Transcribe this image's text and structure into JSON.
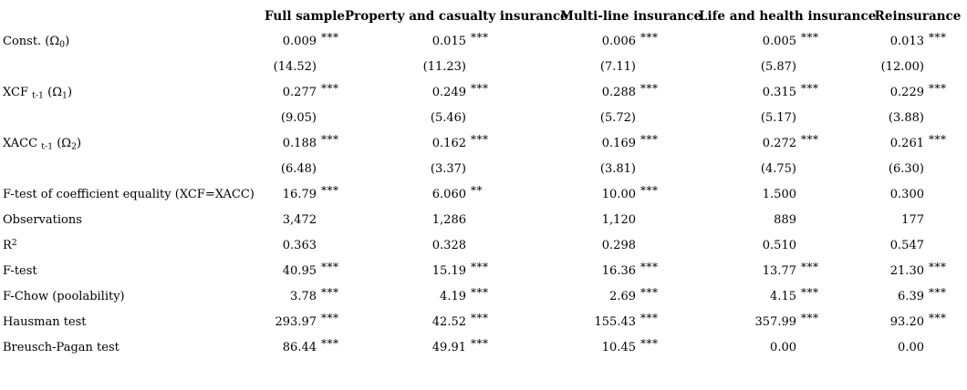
{
  "colors": {
    "text": "#000000",
    "background": "#ffffff"
  },
  "table": {
    "columns": [
      "",
      "Full sample",
      "Property and casualty insurance",
      "Multi-line insurance",
      "Life and health insurance",
      "Reinsurance"
    ],
    "rows": [
      {
        "kind": "coefficient",
        "label_parts": [
          {
            "t": "Const. (Ω"
          },
          {
            "t": "0",
            "s": "sub"
          },
          {
            "t": ")"
          }
        ],
        "cells": [
          {
            "v": "0.009",
            "stars": "***"
          },
          {
            "v": "0.015",
            "stars": "***"
          },
          {
            "v": "0.006",
            "stars": "***"
          },
          {
            "v": "0.005",
            "stars": "***"
          },
          {
            "v": "0.013",
            "stars": "***"
          }
        ]
      },
      {
        "kind": "t-statistic",
        "label_parts": [],
        "cells": [
          {
            "v": "(14.52)"
          },
          {
            "v": "(11.23)"
          },
          {
            "v": "(7.11)"
          },
          {
            "v": "(5.87)"
          },
          {
            "v": "(12.00)"
          }
        ]
      },
      {
        "kind": "coefficient",
        "label_parts": [
          {
            "t": "XCF "
          },
          {
            "t": "t-1",
            "s": "sub"
          },
          {
            "t": " (Ω"
          },
          {
            "t": "1",
            "s": "sub"
          },
          {
            "t": ")"
          }
        ],
        "cells": [
          {
            "v": "0.277",
            "stars": "***"
          },
          {
            "v": "0.249",
            "stars": "***"
          },
          {
            "v": "0.288",
            "stars": "***"
          },
          {
            "v": "0.315",
            "stars": "***"
          },
          {
            "v": "0.229",
            "stars": "***"
          }
        ]
      },
      {
        "kind": "t-statistic",
        "label_parts": [],
        "cells": [
          {
            "v": "(9.05)"
          },
          {
            "v": "(5.46)"
          },
          {
            "v": "(5.72)"
          },
          {
            "v": "(5.17)"
          },
          {
            "v": "(3.88)"
          }
        ]
      },
      {
        "kind": "coefficient",
        "label_parts": [
          {
            "t": "XACC "
          },
          {
            "t": "t-1",
            "s": "sub"
          },
          {
            "t": " (Ω"
          },
          {
            "t": "2",
            "s": "sub"
          },
          {
            "t": ")"
          }
        ],
        "cells": [
          {
            "v": "0.188",
            "stars": "***"
          },
          {
            "v": "0.162",
            "stars": "***"
          },
          {
            "v": "0.169",
            "stars": "***"
          },
          {
            "v": "0.272",
            "stars": "***"
          },
          {
            "v": "0.261",
            "stars": "***"
          }
        ]
      },
      {
        "kind": "t-statistic",
        "label_parts": [],
        "cells": [
          {
            "v": "(6.48)"
          },
          {
            "v": "(3.37)"
          },
          {
            "v": "(3.81)"
          },
          {
            "v": "(4.75)"
          },
          {
            "v": "(6.30)"
          }
        ]
      },
      {
        "kind": "statistic",
        "label_parts": [
          {
            "t": "F-test of coefficient equality (XCF=XACC)"
          }
        ],
        "cells": [
          {
            "v": "16.79",
            "stars": "***"
          },
          {
            "v": "6.060",
            "stars": "**"
          },
          {
            "v": "10.00",
            "stars": "***"
          },
          {
            "v": "1.500"
          },
          {
            "v": "0.300"
          }
        ]
      },
      {
        "kind": "statistic",
        "label_parts": [
          {
            "t": "Observations"
          }
        ],
        "cells": [
          {
            "v": "3,472"
          },
          {
            "v": "1,286"
          },
          {
            "v": "1,120"
          },
          {
            "v": "889"
          },
          {
            "v": "177"
          }
        ]
      },
      {
        "kind": "statistic",
        "label_parts": [
          {
            "t": "R"
          },
          {
            "t": "2",
            "s": "sup"
          }
        ],
        "cells": [
          {
            "v": "0.363"
          },
          {
            "v": "0.328"
          },
          {
            "v": "0.298"
          },
          {
            "v": "0.510"
          },
          {
            "v": "0.547"
          }
        ]
      },
      {
        "kind": "statistic",
        "label_parts": [
          {
            "t": "F-test"
          }
        ],
        "cells": [
          {
            "v": "40.95",
            "stars": "***"
          },
          {
            "v": "15.19",
            "stars": "***"
          },
          {
            "v": "16.36",
            "stars": "***"
          },
          {
            "v": "13.77",
            "stars": "***"
          },
          {
            "v": "21.30",
            "stars": "***"
          }
        ]
      },
      {
        "kind": "statistic",
        "label_parts": [
          {
            "t": "F-Chow (poolability)"
          }
        ],
        "cells": [
          {
            "v": "3.78",
            "stars": "***"
          },
          {
            "v": "4.19",
            "stars": "***"
          },
          {
            "v": "2.69",
            "stars": "***"
          },
          {
            "v": "4.15",
            "stars": "***"
          },
          {
            "v": "6.39",
            "stars": "***"
          }
        ]
      },
      {
        "kind": "statistic",
        "label_parts": [
          {
            "t": "Hausman test"
          }
        ],
        "cells": [
          {
            "v": "293.97",
            "stars": "***"
          },
          {
            "v": "42.52",
            "stars": "***"
          },
          {
            "v": "155.43",
            "stars": "***"
          },
          {
            "v": "357.99",
            "stars": "***"
          },
          {
            "v": "93.20",
            "stars": "***"
          }
        ]
      },
      {
        "kind": "statistic",
        "label_parts": [
          {
            "t": "Breusch-Pagan test"
          }
        ],
        "cells": [
          {
            "v": "86.44",
            "stars": "***"
          },
          {
            "v": "49.91",
            "stars": "***"
          },
          {
            "v": "10.45",
            "stars": "***"
          },
          {
            "v": "0.00"
          },
          {
            "v": "0.00"
          }
        ]
      }
    ]
  }
}
